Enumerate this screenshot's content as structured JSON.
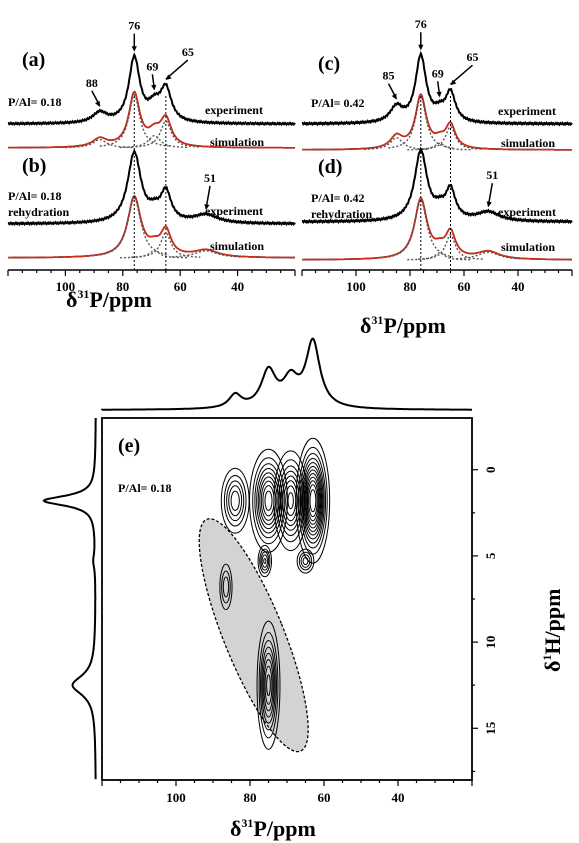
{
  "colors": {
    "experiment": "#000000",
    "simulation_sum": "#d42a1a",
    "components": "#555555",
    "highlight": "#d3d3d3"
  },
  "texts": {
    "panel_a": "(a)",
    "panel_b": "(b)",
    "panel_c": "(c)",
    "panel_d": "(d)",
    "panel_e": "(e)",
    "ratio_018": "P/Al= 0.18",
    "ratio_042": "P/Al= 0.42",
    "rehydration": "rehydration",
    "experiment": "experiment",
    "simulation": "simulation",
    "ann_88": "88",
    "ann_76": "76",
    "ann_69": "69",
    "ann_65": "65",
    "ann_85": "85",
    "ann_51": "51",
    "ratio_e": "P/Al= 0.18"
  },
  "axes": {
    "p31_label_prefix": "δ",
    "p31_label_sup": "31",
    "p31_label_suffix": "P/ppm",
    "h1_label_prefix": "δ",
    "h1_label_sup": "1",
    "h1_label_suffix": "H/ppm",
    "x_ticks_1d": [
      "100",
      "80",
      "60",
      "40"
    ],
    "x_ticks_2d": [
      "100",
      "80",
      "60",
      "40"
    ],
    "y_ticks_2d": [
      "0",
      "5",
      "10",
      "15"
    ]
  },
  "chart_data": [
    {
      "panel": "a",
      "type": "line",
      "ratio": "P/Al= 0.18",
      "xlim": [
        120,
        20
      ],
      "xlabel": "δ31P/ppm",
      "series": [
        {
          "name": "experiment"
        },
        {
          "name": "simulation"
        }
      ],
      "components": [
        {
          "center": 88,
          "height": 0.15,
          "width": 3.0
        },
        {
          "center": 76,
          "height": 0.95,
          "width": 2.3
        },
        {
          "center": 69,
          "height": 0.22,
          "width": 2.6
        },
        {
          "center": 65,
          "height": 0.48,
          "width": 2.3
        }
      ],
      "annotations": [
        88,
        76,
        69,
        65
      ]
    },
    {
      "panel": "b",
      "type": "line",
      "ratio": "P/Al= 0.18 rehydration",
      "xlim": [
        120,
        20
      ],
      "xlabel": "δ31P/ppm",
      "series": [
        {
          "name": "experiment"
        },
        {
          "name": "simulation"
        }
      ],
      "components": [
        {
          "center": 76,
          "height": 1.0,
          "width": 2.8
        },
        {
          "center": 69,
          "height": 0.12,
          "width": 2.3
        },
        {
          "center": 65,
          "height": 0.42,
          "width": 2.2
        },
        {
          "center": 51,
          "height": 0.12,
          "width": 5.0
        }
      ],
      "annotations": [
        51
      ]
    },
    {
      "panel": "c",
      "type": "line",
      "ratio": "P/Al= 0.42",
      "xlim": [
        120,
        20
      ],
      "xlabel": "δ31P/ppm",
      "series": [
        {
          "name": "experiment"
        },
        {
          "name": "simulation"
        }
      ],
      "components": [
        {
          "center": 85,
          "height": 0.22,
          "width": 2.8
        },
        {
          "center": 76,
          "height": 0.95,
          "width": 2.4
        },
        {
          "center": 69,
          "height": 0.12,
          "width": 2.3
        },
        {
          "center": 65,
          "height": 0.42,
          "width": 2.2
        }
      ],
      "annotations": [
        85,
        76,
        69,
        65
      ]
    },
    {
      "panel": "d",
      "type": "line",
      "ratio": "P/Al= 0.42 rehydration",
      "xlim": [
        120,
        20
      ],
      "xlabel": "δ31P/ppm",
      "series": [
        {
          "name": "experiment"
        },
        {
          "name": "simulation"
        }
      ],
      "components": [
        {
          "center": 76,
          "height": 1.0,
          "width": 2.8
        },
        {
          "center": 69,
          "height": 0.12,
          "width": 2.3
        },
        {
          "center": 65,
          "height": 0.42,
          "width": 2.2
        },
        {
          "center": 51,
          "height": 0.13,
          "width": 5.0
        }
      ],
      "annotations": [
        51
      ]
    },
    {
      "panel": "e",
      "type": "heatmap",
      "ratio": "P/Al= 0.18",
      "xlabel": "δ31P/ppm",
      "ylabel": "δ1H/ppm",
      "xlim": [
        120,
        20
      ],
      "ylim": [
        -3,
        18
      ],
      "peaks": [
        {
          "p": 63,
          "h": 1.8,
          "amp": 1.0,
          "sp": 2.0,
          "sh": 1.6
        },
        {
          "p": 69,
          "h": 1.8,
          "amp": 0.65,
          "sp": 2.2,
          "sh": 1.4
        },
        {
          "p": 75,
          "h": 1.8,
          "amp": 0.75,
          "sp": 2.4,
          "sh": 1.4
        },
        {
          "p": 84,
          "h": 1.8,
          "amp": 0.45,
          "sp": 2.0,
          "sh": 1.0
        },
        {
          "p": 76,
          "h": 5.3,
          "amp": 0.4,
          "sp": 1.0,
          "sh": 0.5
        },
        {
          "p": 65,
          "h": 5.3,
          "amp": 0.35,
          "sp": 1.3,
          "sh": 0.4
        },
        {
          "p": 86.5,
          "h": 6.8,
          "amp": 0.3,
          "sp": 1.0,
          "sh": 0.8
        },
        {
          "p": 75,
          "h": 12.5,
          "amp": 0.65,
          "sp": 1.5,
          "sh": 1.8
        }
      ],
      "contour_levels": 12,
      "projection_f2": [
        {
          "center": 84,
          "height": 0.2,
          "width": 2.0
        },
        {
          "center": 75,
          "height": 0.55,
          "width": 2.4
        },
        {
          "center": 69,
          "height": 0.4,
          "width": 2.5
        },
        {
          "center": 63,
          "height": 1.0,
          "width": 2.3
        }
      ],
      "projection_f1": [
        {
          "center": 1.8,
          "height": 1.0,
          "width": 0.35
        },
        {
          "center": 12.5,
          "height": 0.45,
          "width": 0.7
        },
        {
          "center": 5.3,
          "height": 0.04,
          "width": 0.5
        }
      ]
    }
  ]
}
